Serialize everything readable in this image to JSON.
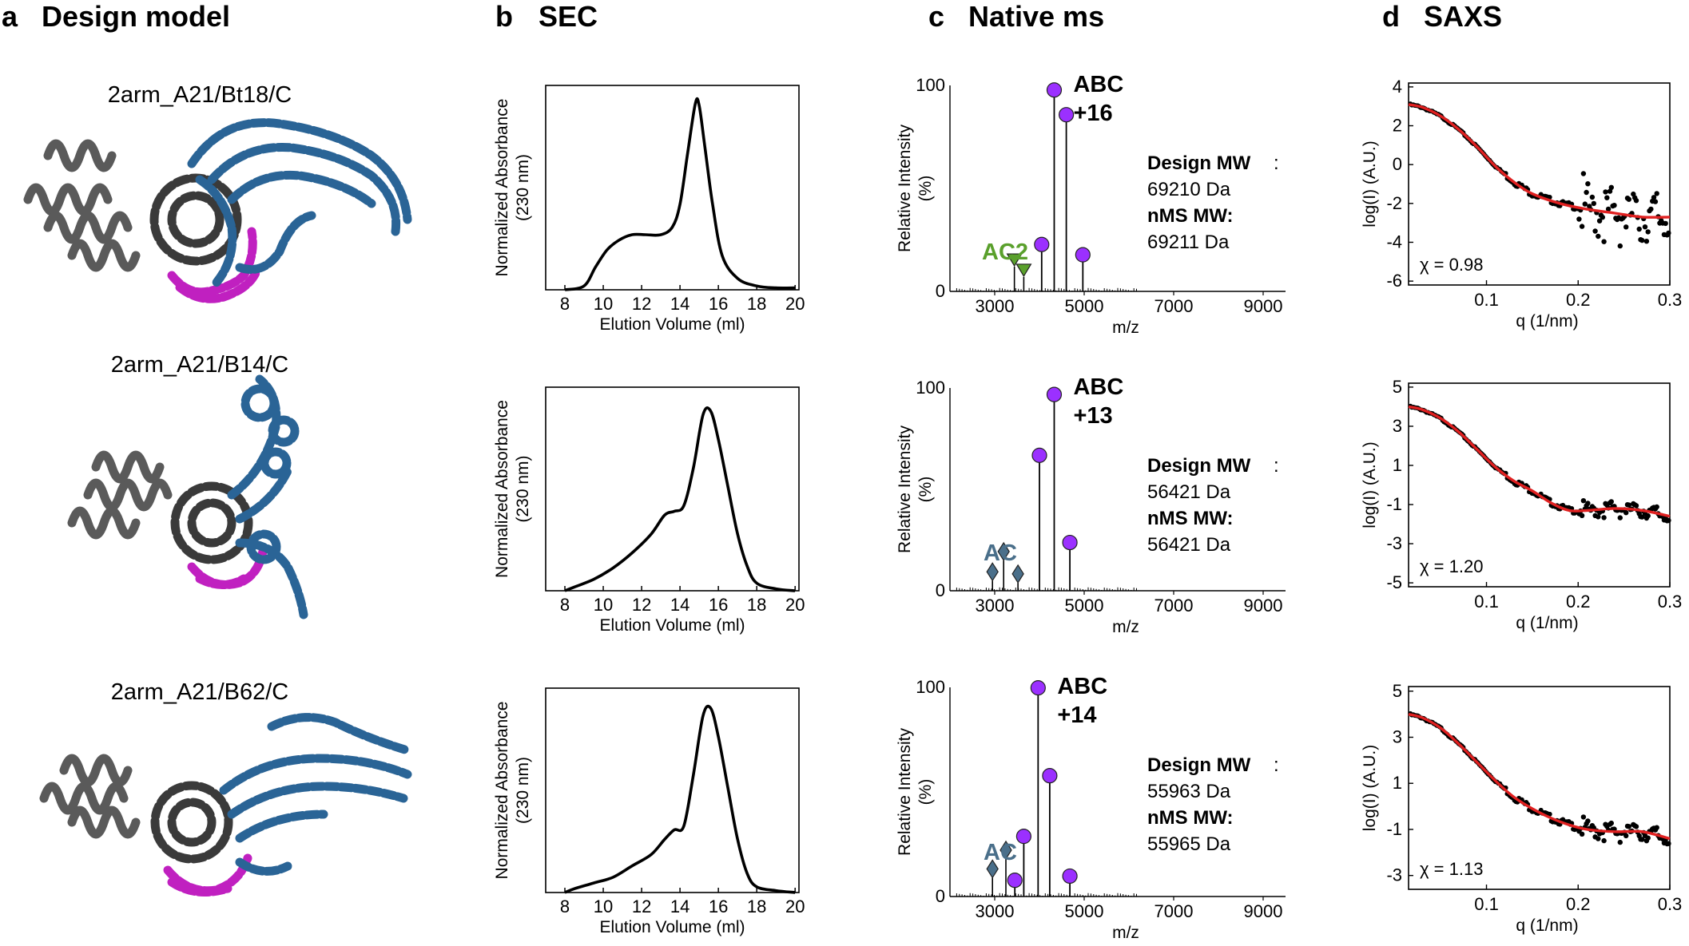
{
  "panels": {
    "a": {
      "letter": "a",
      "title": "Design model"
    },
    "b": {
      "letter": "b",
      "title": "SEC"
    },
    "c": {
      "letter": "c",
      "title": "Native ms"
    },
    "d": {
      "letter": "d",
      "title": "SAXS"
    }
  },
  "models": [
    "2arm_A21/Bt18/C",
    "2arm_A21/B14/C",
    "2arm_A21/B62/C"
  ],
  "colors": {
    "grey": "#5a5a5a",
    "dark": "#3a3a3a",
    "blue": "#2a6496",
    "magenta": "#c020c0",
    "purple": "#9b30ff",
    "green": "#5aa02c",
    "slate": "#4a6f8a",
    "red": "#e02020"
  },
  "sec": {
    "ylabel": [
      "Normalized Absorbance",
      "(230 nm)"
    ],
    "xlabel": "Elution Volume (ml)",
    "xticks": [
      "8",
      "10",
      "12",
      "14",
      "16",
      "18",
      "20"
    ]
  },
  "ms": {
    "ylabel": [
      "Relative Intensity",
      "(%)"
    ],
    "xlabel": "m/z",
    "xticks": [
      "3000",
      "5000",
      "7000",
      "9000"
    ],
    "ytick_top": "100",
    "ytick_bottom": "0",
    "abc_label": "ABC",
    "design_mw_label": "Design MW",
    "colon": ":",
    "nms_mw_label": "nMS MW:",
    "rows": [
      {
        "charge": "+16",
        "sub_label": "AC2",
        "sub_color": "green",
        "design_mw": "69210 Da",
        "nms_mw": "69211 Da"
      },
      {
        "charge": "+13",
        "sub_label": "AC",
        "sub_color": "slate",
        "design_mw": "56421 Da",
        "nms_mw": "56421 Da"
      },
      {
        "charge": "+14",
        "sub_label": "AC",
        "sub_color": "slate",
        "design_mw": "55963 Da",
        "nms_mw": "55965 Da"
      }
    ]
  },
  "saxs": {
    "ylabel": "log(I) (A.U.)",
    "xlabel": "q (1/nm)",
    "xticks": [
      "0.1",
      "0.2",
      "0.3"
    ],
    "rows": [
      {
        "yticks": [
          "4",
          "2",
          "0",
          "-2",
          "-4",
          "-6"
        ],
        "chi": "χ = 0.98"
      },
      {
        "yticks": [
          "5",
          "3",
          "1",
          "-1",
          "-3",
          "-5"
        ],
        "chi": "χ = 1.20"
      },
      {
        "yticks": [
          "5",
          "3",
          "1",
          "-1",
          "-3"
        ],
        "chi": "χ = 1.13"
      }
    ]
  },
  "chart_data": [
    {
      "type": "line",
      "panel": "SEC",
      "design": "2arm_A21/Bt18/C",
      "xlabel": "Elution Volume (ml)",
      "ylabel": "Normalized Absorbance (230 nm)",
      "xlim": [
        7,
        20.2
      ],
      "ylim": [
        0,
        1.0
      ],
      "x": [
        8.0,
        9.0,
        9.6,
        10.2,
        10.8,
        11.5,
        12.2,
        13.0,
        13.6,
        14.0,
        14.4,
        14.8,
        15.0,
        15.3,
        15.7,
        16.2,
        17.0,
        18.0,
        19.0,
        20.0
      ],
      "y": [
        0.0,
        0.02,
        0.12,
        0.21,
        0.26,
        0.29,
        0.29,
        0.29,
        0.33,
        0.45,
        0.72,
        0.98,
        0.97,
        0.75,
        0.45,
        0.18,
        0.06,
        0.02,
        0.01,
        0.01
      ]
    },
    {
      "type": "line",
      "panel": "SEC",
      "design": "2arm_A21/B14/C",
      "xlabel": "Elution Volume (ml)",
      "ylabel": "Normalized Absorbance (230 nm)",
      "xlim": [
        7,
        20.2
      ],
      "ylim": [
        0,
        1.0
      ],
      "x": [
        8.0,
        8.5,
        9.5,
        10.5,
        11.5,
        12.5,
        13.2,
        13.7,
        14.2,
        14.7,
        15.2,
        15.6,
        16.0,
        16.5,
        17.0,
        17.5,
        18.0,
        19.0,
        20.0
      ],
      "y": [
        0.0,
        0.02,
        0.06,
        0.12,
        0.2,
        0.3,
        0.4,
        0.42,
        0.45,
        0.65,
        0.93,
        0.95,
        0.8,
        0.55,
        0.3,
        0.13,
        0.04,
        0.01,
        0.0
      ]
    },
    {
      "type": "line",
      "panel": "SEC",
      "design": "2arm_A21/B62/C",
      "xlabel": "Elution Volume (ml)",
      "ylabel": "Normalized Absorbance (230 nm)",
      "xlim": [
        7,
        20.2
      ],
      "ylim": [
        0,
        1.0
      ],
      "x": [
        8.0,
        8.5,
        9.5,
        10.5,
        11.5,
        12.5,
        13.2,
        13.7,
        14.2,
        14.7,
        15.2,
        15.6,
        16.0,
        16.5,
        17.0,
        17.5,
        18.0,
        19.0,
        20.0
      ],
      "y": [
        0.0,
        0.02,
        0.05,
        0.08,
        0.14,
        0.2,
        0.28,
        0.33,
        0.35,
        0.62,
        0.93,
        0.97,
        0.82,
        0.55,
        0.28,
        0.1,
        0.03,
        0.01,
        0.0
      ]
    },
    {
      "type": "bar",
      "panel": "Native ms",
      "design": "2arm_A21/Bt18/C",
      "xlabel": "m/z",
      "ylabel": "Relative Intensity (%)",
      "xlim": [
        2000,
        9500
      ],
      "ylim": [
        0,
        100
      ],
      "abc_peaks": {
        "x": [
          4050,
          4330,
          4600,
          4970
        ],
        "y": [
          22,
          97,
          85,
          17
        ]
      },
      "sub_peaks": {
        "x": [
          3440,
          3650
        ],
        "y": [
          12,
          7
        ]
      }
    },
    {
      "type": "bar",
      "panel": "Native ms",
      "design": "2arm_A21/B14/C",
      "xlabel": "m/z",
      "ylabel": "Relative Intensity (%)",
      "xlim": [
        2000,
        9500
      ],
      "ylim": [
        0,
        100
      ],
      "abc_peaks": {
        "x": [
          4000,
          4330,
          4680
        ],
        "y": [
          66,
          96,
          23
        ]
      },
      "sub_peaks": {
        "x": [
          2950,
          3200,
          3520
        ],
        "y": [
          5,
          15,
          4
        ]
      }
    },
    {
      "type": "bar",
      "panel": "Native ms",
      "design": "2arm_A21/B62/C",
      "xlabel": "m/z",
      "ylabel": "Relative Intensity (%)",
      "xlim": [
        2000,
        9500
      ],
      "ylim": [
        0,
        100
      ],
      "abc_peaks": {
        "x": [
          3450,
          3650,
          3970,
          4230,
          4680
        ],
        "y": [
          7,
          28,
          99,
          57,
          9
        ]
      },
      "sub_peaks": {
        "x": [
          2950,
          3250
        ],
        "y": [
          9,
          18
        ]
      }
    },
    {
      "type": "scatter",
      "panel": "SAXS",
      "design": "2arm_A21/Bt18/C",
      "xlabel": "q (1/nm)",
      "ylabel": "log(I) (A.U.)",
      "xlim": [
        0.015,
        0.3
      ],
      "ylim": [
        -6.2,
        4.2
      ],
      "fit": {
        "q": [
          0.015,
          0.03,
          0.05,
          0.07,
          0.09,
          0.11,
          0.13,
          0.15,
          0.18,
          0.21,
          0.24,
          0.27,
          0.3
        ],
        "logI": [
          3.1,
          2.95,
          2.5,
          1.8,
          0.9,
          -0.1,
          -0.9,
          -1.5,
          -2.0,
          -2.3,
          -2.5,
          -2.7,
          -2.7
        ]
      }
    },
    {
      "type": "scatter",
      "panel": "SAXS",
      "design": "2arm_A21/B14/C",
      "xlabel": "q (1/nm)",
      "ylabel": "log(I) (A.U.)",
      "xlim": [
        0.015,
        0.3
      ],
      "ylim": [
        -5.2,
        5.2
      ],
      "fit": {
        "q": [
          0.015,
          0.03,
          0.05,
          0.07,
          0.09,
          0.11,
          0.13,
          0.15,
          0.17,
          0.19,
          0.21,
          0.24,
          0.27,
          0.3
        ],
        "logI": [
          4.0,
          3.85,
          3.4,
          2.7,
          1.8,
          0.9,
          0.2,
          -0.3,
          -0.9,
          -1.3,
          -1.3,
          -1.2,
          -1.3,
          -1.6
        ]
      }
    },
    {
      "type": "scatter",
      "panel": "SAXS",
      "design": "2arm_A21/B62/C",
      "xlabel": "q (1/nm)",
      "ylabel": "log(I) (A.U.)",
      "xlim": [
        0.015,
        0.3
      ],
      "ylim": [
        -3.6,
        5.2
      ],
      "fit": {
        "q": [
          0.015,
          0.03,
          0.05,
          0.07,
          0.09,
          0.11,
          0.13,
          0.15,
          0.17,
          0.19,
          0.21,
          0.24,
          0.27,
          0.3
        ],
        "logI": [
          4.0,
          3.85,
          3.4,
          2.7,
          1.9,
          1.1,
          0.4,
          -0.1,
          -0.5,
          -0.8,
          -1.0,
          -1.1,
          -1.1,
          -1.4
        ]
      }
    }
  ]
}
